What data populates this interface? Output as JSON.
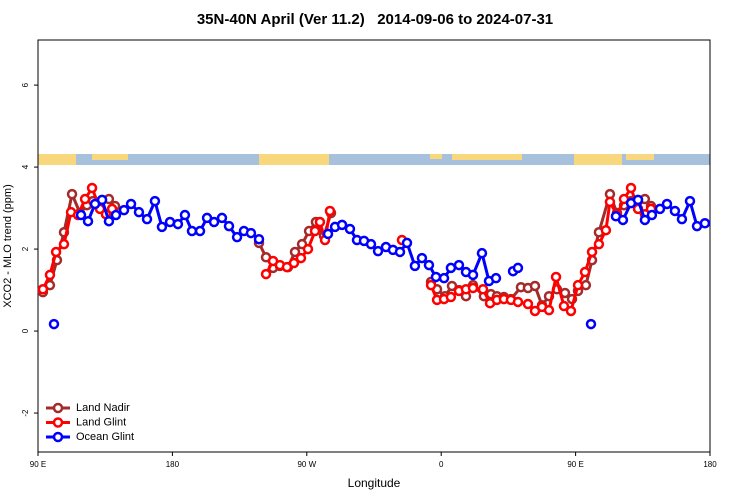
{
  "chart_data": {
    "type": "line",
    "title": "35N-40N April (Ver 11.2)   2014-09-06 to 2024-07-31",
    "xlabel": "Longitude",
    "ylabel": "XCO2 - MLO trend (ppm)",
    "xlim": [
      90,
      540
    ],
    "ylim": [
      -2.95,
      7.1
    ],
    "xticks": [
      {
        "value": 90,
        "label": "90 E"
      },
      180,
      {
        "value": 270,
        "label": "90 W"
      },
      {
        "value": 360,
        "label": "0"
      },
      {
        "value": 450,
        "label": "90 E"
      },
      {
        "value": 540,
        "label": "180"
      }
    ],
    "yticks": [
      -2,
      0,
      2,
      4,
      6
    ],
    "legend": "bottom-left",
    "series": [
      {
        "name": "Land Nadir",
        "color": "#a52a2a",
        "x": [
          93.3,
          98.0,
          102.7,
          107.4,
          112.8,
          118.1,
          122.8,
          126.8,
          132.2,
          137.5,
          141.6,
          null,
          238.0,
          242.7,
          247.4,
          252.0,
          257.4,
          262.1,
          266.8,
          271.5,
          276.1,
          281.5,
          286.2,
          null,
          353.2,
          357.2,
          362.5,
          367.2,
          371.9,
          376.6,
          381.3,
          388.6,
          393.3,
          397.3,
          402.0,
          406.7,
          413.4,
          418.1,
          422.8,
          427.5,
          432.2,
          437.5,
          442.9,
          447.6,
          451.6,
          456.9,
          461.0,
          465.6,
          473.0,
          477.7,
          482.4,
          487.1,
          491.8,
          496.4,
          500.5
        ],
        "values": [
          0.95,
          1.12,
          1.73,
          2.41,
          3.34,
          2.88,
          3.07,
          3.17,
          3.17,
          3.22,
          3.05,
          null,
          2.15,
          1.8,
          1.54,
          1.59,
          1.56,
          1.93,
          2.12,
          2.44,
          2.66,
          2.32,
          2.88,
          null,
          1.2,
          1.02,
          0.85,
          1.1,
          1.0,
          0.85,
          1.12,
          0.85,
          0.9,
          0.85,
          0.83,
          0.78,
          1.07,
          1.05,
          1.1,
          0.63,
          0.85,
          1.02,
          0.93,
          0.78,
          0.98,
          1.12,
          1.73,
          2.41,
          3.34,
          2.88,
          3.07,
          3.17,
          3.17,
          3.22,
          3.05
        ]
      },
      {
        "name": "Land Glint",
        "color": "#ff0000",
        "x": [
          93.3,
          98.0,
          102.1,
          107.4,
          112.1,
          116.8,
          121.5,
          126.2,
          131.5,
          135.5,
          139.6,
          null,
          242.7,
          247.4,
          252.0,
          256.7,
          261.4,
          266.1,
          270.8,
          275.5,
          278.8,
          282.2,
          285.5,
          null,
          333.7,
          null,
          353.2,
          357.2,
          361.9,
          366.5,
          371.9,
          376.6,
          381.3,
          388.0,
          392.7,
          397.3,
          402.0,
          406.7,
          411.4,
          418.1,
          422.8,
          427.5,
          432.2,
          436.9,
          442.2,
          446.9,
          451.6,
          456.3,
          461.0,
          465.6,
          470.3,
          473.0,
          477.7,
          482.4,
          487.1,
          491.8,
          496.4,
          500.5
        ],
        "values": [
          1.02,
          1.37,
          1.93,
          2.12,
          2.9,
          2.83,
          3.22,
          3.49,
          2.98,
          2.85,
          2.98,
          null,
          1.39,
          1.71,
          1.61,
          1.56,
          1.66,
          1.78,
          2.0,
          2.44,
          2.66,
          2.22,
          2.93,
          null,
          2.22,
          null,
          1.12,
          0.76,
          0.78,
          0.83,
          0.98,
          1.02,
          1.05,
          1.02,
          0.68,
          0.76,
          0.78,
          0.76,
          0.71,
          0.66,
          0.49,
          0.59,
          0.51,
          1.32,
          0.61,
          0.49,
          1.12,
          1.44,
          1.93,
          2.12,
          2.46,
          3.15,
          2.83,
          3.22,
          3.49,
          2.98,
          2.85,
          2.98
        ]
      },
      {
        "name": "Ocean Glint",
        "color": "#0000ff",
        "x": [
          100.7,
          null,
          118.8,
          123.5,
          128.2,
          132.9,
          137.5,
          142.2,
          147.6,
          152.3,
          157.6,
          163.0,
          168.3,
          173.0,
          178.4,
          183.7,
          188.4,
          193.1,
          198.5,
          203.2,
          207.9,
          213.2,
          217.9,
          223.3,
          227.9,
          232.6,
          238.0,
          null,
          284.2,
          288.9,
          293.6,
          298.9,
          303.6,
          308.3,
          313.0,
          317.7,
          323.0,
          327.7,
          332.4,
          337.1,
          342.4,
          347.1,
          351.8,
          356.5,
          361.9,
          366.5,
          371.9,
          376.6,
          381.3,
          387.3,
          392.0,
          396.7,
          null,
          408.1,
          411.4,
          null,
          460.3,
          null,
          477.0,
          481.7,
          487.1,
          491.8,
          496.4,
          501.1,
          506.5,
          511.2,
          516.5,
          521.2,
          526.6,
          531.3,
          536.6
        ],
        "values": [
          0.17,
          null,
          2.83,
          2.68,
          3.1,
          3.2,
          2.68,
          2.83,
          2.95,
          3.1,
          2.9,
          2.73,
          3.17,
          2.54,
          2.66,
          2.61,
          2.83,
          2.44,
          2.44,
          2.76,
          2.66,
          2.76,
          2.56,
          2.29,
          2.44,
          2.39,
          2.24,
          null,
          2.37,
          2.54,
          2.59,
          2.49,
          2.22,
          2.2,
          2.12,
          1.95,
          2.05,
          1.98,
          1.93,
          2.15,
          1.59,
          1.78,
          1.61,
          1.32,
          1.29,
          1.54,
          1.61,
          1.44,
          1.37,
          1.9,
          1.22,
          1.29,
          null,
          1.46,
          1.54,
          null,
          0.17,
          null,
          2.8,
          2.71,
          3.12,
          3.2,
          2.71,
          2.83,
          2.98,
          3.1,
          2.93,
          2.73,
          3.17,
          2.56,
          2.63
        ]
      }
    ]
  }
}
